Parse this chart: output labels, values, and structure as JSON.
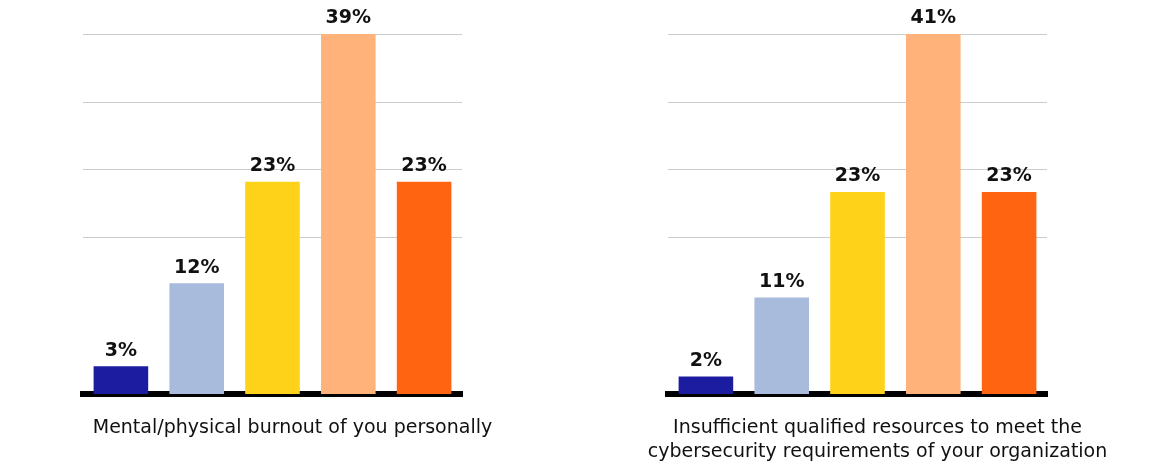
{
  "chart_data": [
    {
      "type": "bar",
      "xlabel": "Mental/physical burnout of you personally",
      "categories": [
        null,
        null,
        null,
        null,
        null
      ],
      "values": [
        3,
        12,
        23,
        39,
        23
      ],
      "value_labels": [
        "3%",
        "12%",
        "23%",
        "39%",
        "23%"
      ],
      "colors": [
        "#1c1ca0",
        "#a9bbdc",
        "#ffd21a",
        "#ffb27a",
        "#ff6410"
      ],
      "grid": "y"
    },
    {
      "type": "bar",
      "xlabel": "Insufficient qualified resources to meet the cybersecurity requirements of your organization",
      "categories": [
        null,
        null,
        null,
        null,
        null
      ],
      "values": [
        2,
        11,
        23,
        41,
        23
      ],
      "value_labels": [
        "2%",
        "11%",
        "23%",
        "41%",
        "23%"
      ],
      "colors": [
        "#1c1ca0",
        "#a9bbdc",
        "#ffd21a",
        "#ffb27a",
        "#ff6410"
      ],
      "grid": "y"
    }
  ]
}
